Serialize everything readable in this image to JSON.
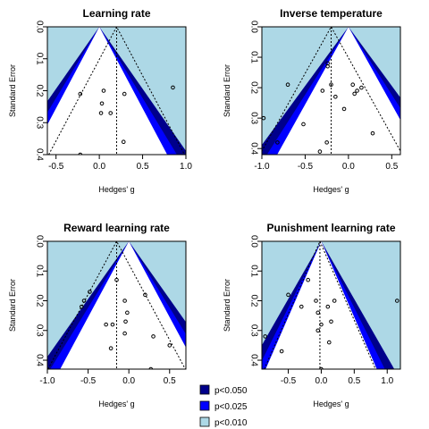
{
  "chart_data": [
    {
      "type": "scatter",
      "title": "Learning rate",
      "xlabel": "Hedges' g",
      "ylabel": "Standard Error",
      "xlim": [
        -0.6,
        1.0
      ],
      "ylim": [
        0,
        0.4
      ],
      "xticks": [
        "-0.5",
        "0.0",
        "0.5",
        "1.0"
      ],
      "xtick_values": [
        -0.5,
        0.0,
        0.5,
        1.0
      ],
      "yticks": [
        "0.0",
        "0.1",
        "0.2",
        "0.3",
        "0.4"
      ],
      "ytick_values": [
        0,
        0.1,
        0.2,
        0.3,
        0.4
      ],
      "contour_center": 0,
      "pooled_estimate": 0.2,
      "points": [
        {
          "x": -0.22,
          "y": 0.21
        },
        {
          "x": 0.05,
          "y": 0.2
        },
        {
          "x": 0.03,
          "y": 0.24
        },
        {
          "x": 0.29,
          "y": 0.21
        },
        {
          "x": 0.85,
          "y": 0.19
        },
        {
          "x": 0.02,
          "y": 0.27
        },
        {
          "x": 0.13,
          "y": 0.27
        },
        {
          "x": 0.28,
          "y": 0.36
        },
        {
          "x": -0.22,
          "y": 0.4
        }
      ]
    },
    {
      "type": "scatter",
      "title": "Inverse temperature",
      "xlabel": "Hedges' g",
      "ylabel": "Standard Error",
      "xlim": [
        -1.0,
        0.6
      ],
      "ylim": [
        0,
        0.42
      ],
      "xticks": [
        "-1.0",
        "-0.5",
        "0.0",
        "0.5"
      ],
      "xtick_values": [
        -1.0,
        -0.5,
        0.0,
        0.5
      ],
      "yticks": [
        "0.0",
        "0.1",
        "0.2",
        "0.3",
        "0.4"
      ],
      "ytick_values": [
        0,
        0.1,
        0.2,
        0.3,
        0.4
      ],
      "contour_center": 0,
      "pooled_estimate": -0.2,
      "points": [
        {
          "x": -0.24,
          "y": 0.12
        },
        {
          "x": -0.24,
          "y": 0.13
        },
        {
          "x": -0.7,
          "y": 0.19
        },
        {
          "x": -0.2,
          "y": 0.19
        },
        {
          "x": -0.3,
          "y": 0.21
        },
        {
          "x": 0.05,
          "y": 0.19
        },
        {
          "x": 0.1,
          "y": 0.21
        },
        {
          "x": 0.15,
          "y": 0.2
        },
        {
          "x": 0.07,
          "y": 0.22
        },
        {
          "x": -0.15,
          "y": 0.23
        },
        {
          "x": -0.05,
          "y": 0.27
        },
        {
          "x": -0.98,
          "y": 0.3
        },
        {
          "x": -0.52,
          "y": 0.32
        },
        {
          "x": 0.28,
          "y": 0.35
        },
        {
          "x": -0.82,
          "y": 0.38
        },
        {
          "x": -0.25,
          "y": 0.38
        },
        {
          "x": -0.33,
          "y": 0.41
        },
        {
          "x": -0.22,
          "y": 0.43
        }
      ]
    },
    {
      "type": "scatter",
      "title": "Reward learning rate",
      "xlabel": "Hedges' g",
      "ylabel": "Standard Error",
      "xlim": [
        -1.0,
        0.7
      ],
      "ylim": [
        0,
        0.43
      ],
      "xticks": [
        "-1.0",
        "-0.5",
        "0.0",
        "0.5"
      ],
      "xtick_values": [
        -1.0,
        -0.5,
        0.0,
        0.5
      ],
      "yticks": [
        "0.0",
        "0.1",
        "0.2",
        "0.3",
        "0.4"
      ],
      "ytick_values": [
        0,
        0.1,
        0.2,
        0.3,
        0.4
      ],
      "contour_center": 0,
      "pooled_estimate": -0.15,
      "points": [
        {
          "x": -0.15,
          "y": 0.13
        },
        {
          "x": -0.48,
          "y": 0.17
        },
        {
          "x": 0.2,
          "y": 0.18
        },
        {
          "x": -0.55,
          "y": 0.2
        },
        {
          "x": -0.58,
          "y": 0.22
        },
        {
          "x": -0.05,
          "y": 0.2
        },
        {
          "x": -0.02,
          "y": 0.24
        },
        {
          "x": -0.04,
          "y": 0.27
        },
        {
          "x": -0.28,
          "y": 0.28
        },
        {
          "x": -0.2,
          "y": 0.28
        },
        {
          "x": -0.05,
          "y": 0.31
        },
        {
          "x": 0.3,
          "y": 0.32
        },
        {
          "x": 0.5,
          "y": 0.35
        },
        {
          "x": -0.22,
          "y": 0.36
        },
        {
          "x": 0.27,
          "y": 0.43
        }
      ]
    },
    {
      "type": "scatter",
      "title": "Punishment learning rate",
      "xlabel": "Hedges' g",
      "ylabel": "Standard Error",
      "xlim": [
        -0.9,
        1.2
      ],
      "ylim": [
        0,
        0.43
      ],
      "xticks": [
        "-0.5",
        "0.0",
        "0.5",
        "1.0"
      ],
      "xtick_values": [
        -0.5,
        0.0,
        0.5,
        1.0
      ],
      "yticks": [
        "0.0",
        "0.1",
        "0.2",
        "0.3",
        "0.4"
      ],
      "ytick_values": [
        0,
        0.1,
        0.2,
        0.3,
        0.4
      ],
      "contour_center": 0,
      "pooled_estimate": -0.02,
      "points": [
        {
          "x": -0.2,
          "y": 0.13
        },
        {
          "x": -0.5,
          "y": 0.18
        },
        {
          "x": -0.3,
          "y": 0.22
        },
        {
          "x": -0.08,
          "y": 0.2
        },
        {
          "x": 0.2,
          "y": 0.2
        },
        {
          "x": -0.05,
          "y": 0.24
        },
        {
          "x": 0.1,
          "y": 0.22
        },
        {
          "x": 1.15,
          "y": 0.2
        },
        {
          "x": -0.85,
          "y": 0.32
        },
        {
          "x": 0.0,
          "y": 0.28
        },
        {
          "x": 0.15,
          "y": 0.27
        },
        {
          "x": -0.05,
          "y": 0.3
        },
        {
          "x": 0.12,
          "y": 0.34
        },
        {
          "x": -0.6,
          "y": 0.37
        },
        {
          "x": 0.0,
          "y": 0.43
        }
      ]
    }
  ],
  "legend": {
    "items": [
      {
        "label": "p<0.050",
        "color": "#00008b"
      },
      {
        "label": "p<0.025",
        "color": "#0000ff"
      },
      {
        "label": "p<0.010",
        "color": "#add8e6"
      }
    ]
  },
  "colors": {
    "sig_010": "#add8e6",
    "sig_025": "#0000ff",
    "sig_050": "#00008b",
    "points": "#000000"
  }
}
